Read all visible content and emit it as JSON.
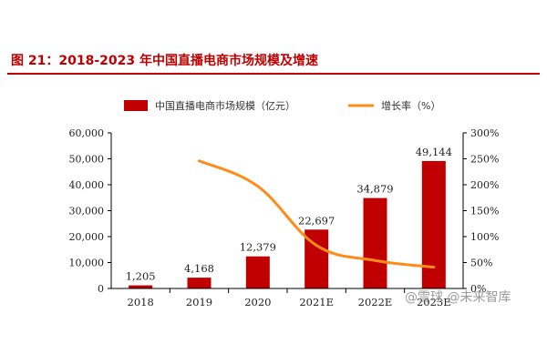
{
  "figure": {
    "title": "图 21：2018-2023 年中国直播电商市场规模及增速"
  },
  "watermark": "@雪球 @未来智库",
  "colors": {
    "title": "#c00000",
    "bars": "#c00000",
    "line": "#ff8c1a"
  },
  "chart_data": {
    "type": "bar",
    "categories": [
      "2018",
      "2019",
      "2020",
      "2021E",
      "2022E",
      "2023E"
    ],
    "series": [
      {
        "name": "中国直播电商市场规模（亿元）",
        "type": "bar",
        "axis": "left",
        "values": [
          1205,
          4168,
          12379,
          22697,
          34879,
          49144
        ],
        "labels": [
          "1,205",
          "4,168",
          "12,379",
          "22,697",
          "34,879",
          "49,144"
        ]
      },
      {
        "name": "增长率（%）",
        "type": "line",
        "axis": "right",
        "smooth": true,
        "values": [
          null,
          246,
          197,
          83,
          54,
          41
        ]
      }
    ],
    "y_left": {
      "range": [
        0,
        60000
      ],
      "ticks": [
        "0",
        "10,000",
        "20,000",
        "30,000",
        "40,000",
        "50,000",
        "60,000"
      ]
    },
    "y_right": {
      "range": [
        0,
        300
      ],
      "ticks": [
        "0%",
        "50%",
        "100%",
        "150%",
        "200%",
        "250%",
        "300%"
      ]
    },
    "legend": "top",
    "grid": false
  }
}
